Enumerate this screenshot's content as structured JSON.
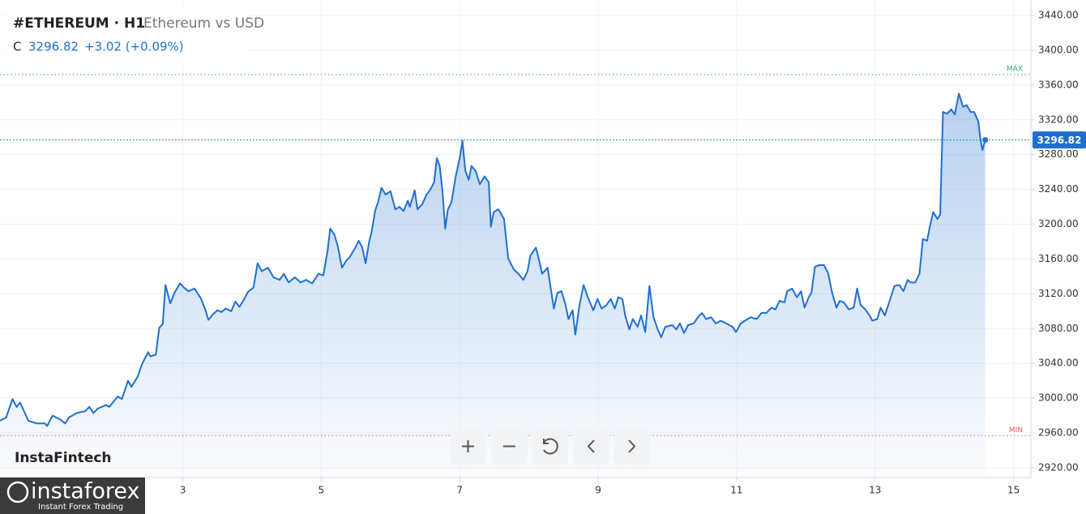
{
  "chart_data": {
    "type": "area-line",
    "symbol": "#ETHEREUM · H1",
    "subtitle": "Ethereum vs USD",
    "close_label": "C",
    "change": "+3.02 (+0.09%)",
    "color": "#1f6fd0",
    "x": [
      0.36,
      0.45,
      0.54,
      0.6,
      0.65,
      0.77,
      0.89,
      1.01,
      1.04,
      1.12,
      1.24,
      1.3,
      1.36,
      1.47,
      1.59,
      1.65,
      1.71,
      1.77,
      1.89,
      1.94,
      2.06,
      2.12,
      2.21,
      2.26,
      2.35,
      2.41,
      2.5,
      2.53,
      2.61,
      2.66,
      2.71,
      2.75,
      2.82,
      2.88,
      2.96,
      3.02,
      3.08,
      3.17,
      3.26,
      3.32,
      3.37,
      3.43,
      3.5,
      3.56,
      3.62,
      3.7,
      3.76,
      3.82,
      3.88,
      3.94,
      4.02,
      4.08,
      4.14,
      4.23,
      4.31,
      4.4,
      4.46,
      4.53,
      4.62,
      4.7,
      4.78,
      4.87,
      4.96,
      5.03,
      5.09,
      5.13,
      5.19,
      5.24,
      5.3,
      5.36,
      5.41,
      5.5,
      5.54,
      5.59,
      5.64,
      5.69,
      5.73,
      5.78,
      5.82,
      5.87,
      5.93,
      6.0,
      6.07,
      6.13,
      6.19,
      6.25,
      6.28,
      6.35,
      6.39,
      6.46,
      6.52,
      6.57,
      6.63,
      6.67,
      6.71,
      6.75,
      6.79,
      6.83,
      6.88,
      6.94,
      7.0,
      7.04,
      7.08,
      7.13,
      7.17,
      7.23,
      7.29,
      7.36,
      7.42,
      7.45,
      7.49,
      7.56,
      7.64,
      7.7,
      7.78,
      7.85,
      7.92,
      7.98,
      8.02,
      8.1,
      8.14,
      8.19,
      8.27,
      8.36,
      8.41,
      8.47,
      8.53,
      8.57,
      8.63,
      8.67,
      8.73,
      8.79,
      8.85,
      8.93,
      8.99,
      9.05,
      9.12,
      9.18,
      9.24,
      9.29,
      9.35,
      9.39,
      9.45,
      9.5,
      9.57,
      9.62,
      9.68,
      9.74,
      9.8,
      9.86,
      9.91,
      9.97,
      10.07,
      10.13,
      10.18,
      10.24,
      10.3,
      10.38,
      10.44,
      10.5,
      10.56,
      10.63,
      10.7,
      10.77,
      10.85,
      10.94,
      10.99,
      11.06,
      11.12,
      11.2,
      11.29,
      11.36,
      11.43,
      11.5,
      11.56,
      11.62,
      11.69,
      11.73,
      11.8,
      11.87,
      11.93,
      11.98,
      12.04,
      12.08,
      12.13,
      12.2,
      12.26,
      12.32,
      12.38,
      12.44,
      12.49,
      12.55,
      12.62,
      12.69,
      12.74,
      12.79,
      12.86,
      12.92,
      12.96,
      13.03,
      13.08,
      13.14,
      13.21,
      13.28,
      13.35,
      13.41,
      13.47,
      13.51,
      13.58,
      13.64,
      13.69,
      13.75,
      13.79,
      13.84,
      13.9,
      13.94,
      13.98,
      14.04,
      14.1,
      14.15,
      14.21,
      14.27,
      14.32,
      14.38,
      14.43,
      14.49,
      14.52,
      14.55,
      14.59
    ],
    "values": [
      2974,
      2978,
      2999,
      2990,
      2995,
      2974,
      2971,
      2971,
      2968,
      2980,
      2975,
      2971,
      2978,
      2983,
      2985,
      2990,
      2983,
      2988,
      2992,
      2990,
      3002,
      2999,
      3020,
      3013,
      3025,
      3039,
      3053,
      3048,
      3050,
      3081,
      3085,
      3130,
      3109,
      3121,
      3132,
      3127,
      3123,
      3126,
      3115,
      3103,
      3090,
      3096,
      3101,
      3099,
      3103,
      3100,
      3111,
      3105,
      3113,
      3122,
      3127,
      3155,
      3146,
      3150,
      3139,
      3136,
      3143,
      3133,
      3139,
      3133,
      3136,
      3132,
      3143,
      3141,
      3169,
      3195,
      3188,
      3174,
      3150,
      3158,
      3162,
      3174,
      3181,
      3174,
      3155,
      3179,
      3192,
      3216,
      3225,
      3242,
      3234,
      3238,
      3217,
      3220,
      3215,
      3227,
      3220,
      3239,
      3217,
      3223,
      3234,
      3239,
      3248,
      3276,
      3267,
      3239,
      3195,
      3217,
      3225,
      3254,
      3276,
      3296,
      3262,
      3251,
      3267,
      3261,
      3246,
      3255,
      3248,
      3197,
      3214,
      3217,
      3206,
      3161,
      3148,
      3143,
      3136,
      3146,
      3164,
      3173,
      3161,
      3143,
      3150,
      3103,
      3121,
      3123,
      3107,
      3091,
      3101,
      3073,
      3107,
      3130,
      3116,
      3101,
      3114,
      3103,
      3107,
      3114,
      3103,
      3116,
      3114,
      3095,
      3079,
      3091,
      3082,
      3095,
      3076,
      3129,
      3093,
      3079,
      3070,
      3082,
      3084,
      3079,
      3086,
      3075,
      3084,
      3086,
      3093,
      3098,
      3091,
      3093,
      3086,
      3089,
      3086,
      3082,
      3076,
      3086,
      3089,
      3093,
      3091,
      3098,
      3098,
      3104,
      3102,
      3112,
      3110,
      3123,
      3126,
      3116,
      3123,
      3104,
      3116,
      3121,
      3151,
      3153,
      3153,
      3144,
      3121,
      3104,
      3112,
      3110,
      3102,
      3104,
      3126,
      3107,
      3102,
      3095,
      3089,
      3091,
      3104,
      3095,
      3112,
      3129,
      3130,
      3123,
      3136,
      3133,
      3133,
      3143,
      3183,
      3181,
      3197,
      3214,
      3206,
      3211,
      3329,
      3327,
      3332,
      3326,
      3350,
      3335,
      3337,
      3329,
      3329,
      3318,
      3299,
      3285,
      3296.82
    ],
    "xlim": [
      0.36,
      15.25
    ],
    "xticks": [
      3,
      5,
      7,
      9,
      11,
      13,
      15
    ],
    "ylim": [
      2908.8,
      3457.7
    ],
    "yticks": [
      {
        "value": 2920,
        "label": "2920.00"
      },
      {
        "value": 2960,
        "label": "2960.00"
      },
      {
        "value": 3000,
        "label": "3000.00"
      },
      {
        "value": 3040,
        "label": "3040.00"
      },
      {
        "value": 3080,
        "label": "3080.00"
      },
      {
        "value": 3120,
        "label": "3120.00"
      },
      {
        "value": 3160,
        "label": "3160.00"
      },
      {
        "value": 3200,
        "label": "3200.00"
      },
      {
        "value": 3240,
        "label": "3240.00"
      },
      {
        "value": 3280,
        "label": "3280.00"
      },
      {
        "value": 3320,
        "label": "3320.00"
      },
      {
        "value": 3360,
        "label": "3360.00"
      },
      {
        "value": 3400,
        "label": "3400.00"
      },
      {
        "value": 3440,
        "label": "3440.00"
      }
    ],
    "grid": true,
    "max_line": {
      "label": "MAX",
      "value": 3372
    },
    "min_line": {
      "label": "MIN",
      "value": 2957
    },
    "branding": {
      "watermark": "InstaFintech",
      "logo": "instaforex",
      "tagline": "Instant Forex Trading"
    }
  }
}
